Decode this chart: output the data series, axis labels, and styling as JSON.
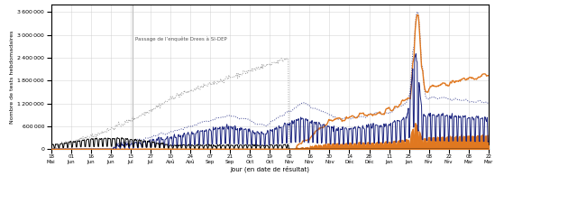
{
  "xlabel": "Jour (en date de résultat)",
  "ylabel": "Nombre de tests hebdomadaires",
  "ylim": [
    0,
    3800000
  ],
  "yticks": [
    0,
    600000,
    1200000,
    1800000,
    2400000,
    3000000,
    3600000
  ],
  "background_color": "#ffffff",
  "annotation_text": "Passage de l’enquête Drees à SI-DEP",
  "grid_color": "#cccccc",
  "colors": {
    "enquete_drees": "#000000",
    "cumul_enquete_drees": "#888888",
    "sidep_tag_fill": "#e07820",
    "sidep_tag_line": "#e07820",
    "sidep_pcr_tag": "#1a237e",
    "cumul_sidep_pcr_tag": "#1a237e"
  },
  "x_tick_labels": [
    "18\nMai",
    "01\nJun",
    "16\nJun",
    "29\nJun",
    "13\nJul",
    "27\nJul",
    "10\nAoû",
    "24\nAoû",
    "07\nSep",
    "21\nSep",
    "05\nOct",
    "19\nOct",
    "02\nNov",
    "16\nNov",
    "30\nNov",
    "14\nDéc",
    "28\nDéc",
    "11\nJan",
    "25\nJan",
    "08\nFév",
    "22\nFév",
    "08\nMar",
    "22\nMar"
  ]
}
